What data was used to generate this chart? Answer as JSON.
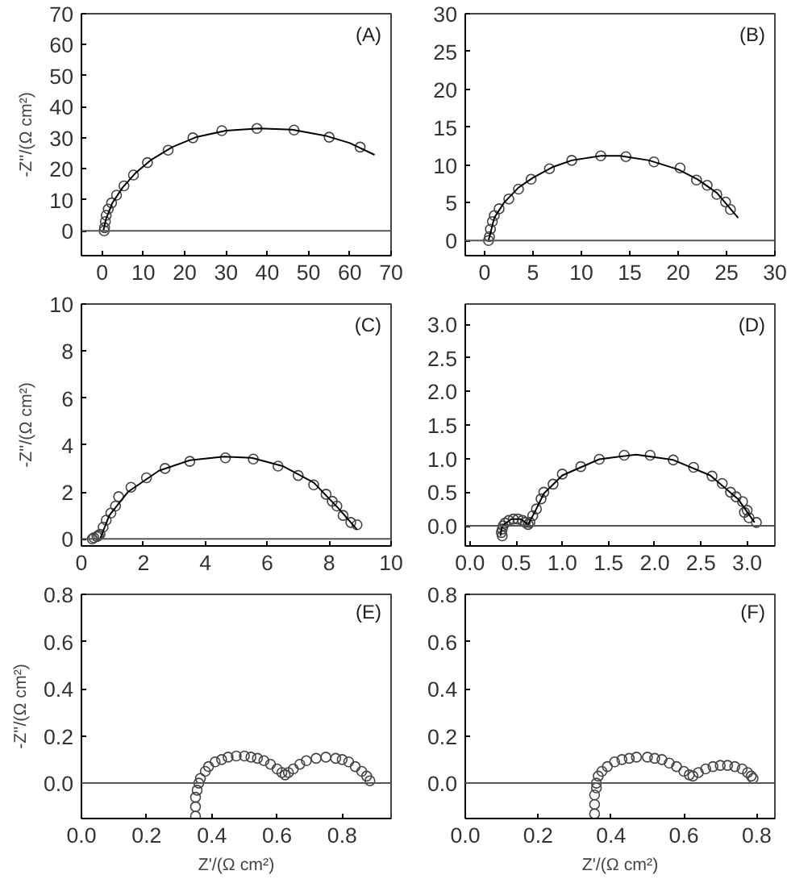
{
  "chart_data": [
    {
      "type": "scatter",
      "annotations": [
        "(A)"
      ],
      "ylabel": "-Z''/(Ω cm²)",
      "xlim": [
        -5,
        70
      ],
      "ylim": [
        -8,
        70
      ],
      "xticks": [
        0,
        10,
        20,
        30,
        40,
        50,
        60,
        70
      ],
      "yticks": [
        0,
        10,
        20,
        30,
        40,
        50,
        60,
        70
      ],
      "ref_lines": [
        {
          "axis": "y",
          "value": 0,
          "color": "#555555"
        }
      ],
      "series": [
        {
          "marker": "circle",
          "color": "#444444",
          "x": [
            0.5,
            0.6,
            0.8,
            1,
            1.5,
            2.3,
            3.5,
            5.3,
            7.6,
            11,
            16,
            22,
            29,
            37.5,
            46.5,
            55,
            62.5
          ],
          "values": [
            0,
            1,
            3,
            5,
            7,
            9,
            11.5,
            14.5,
            18,
            22,
            26,
            30,
            32.3,
            33,
            32.5,
            30.2,
            27
          ]
        },
        {
          "type": "line",
          "color": "#000000",
          "x": [
            0.3,
            1,
            2.5,
            5,
            8,
            12,
            17,
            23,
            30,
            38,
            46,
            54,
            60,
            66
          ],
          "values": [
            0,
            4,
            9,
            14,
            18.5,
            23,
            27,
            30.3,
            32.3,
            33,
            32.6,
            30.7,
            28.3,
            24.5
          ]
        }
      ]
    },
    {
      "type": "scatter",
      "annotations": [
        "(B)"
      ],
      "xlim": [
        -2,
        30
      ],
      "ylim": [
        -2,
        30
      ],
      "xticks": [
        0,
        5,
        10,
        15,
        20,
        25,
        30
      ],
      "yticks": [
        0,
        5,
        10,
        15,
        20,
        25,
        30
      ],
      "ref_lines": [
        {
          "axis": "y",
          "value": 0,
          "color": "#555555"
        }
      ],
      "series": [
        {
          "marker": "circle",
          "color": "#444444",
          "x": [
            0.4,
            0.5,
            0.6,
            0.8,
            1.0,
            1.5,
            2.5,
            3.5,
            4.8,
            6.7,
            9,
            12,
            14.6,
            17.5,
            20.2,
            21.9,
            23,
            24,
            24.9,
            25.4
          ],
          "values": [
            0,
            0.5,
            1.5,
            2.5,
            3.3,
            4.2,
            5.5,
            6.8,
            8.1,
            9.5,
            10.6,
            11.2,
            11.1,
            10.4,
            9.6,
            8,
            7.3,
            6.1,
            5.1,
            4.1
          ]
        },
        {
          "type": "line",
          "color": "#000000",
          "x": [
            0.4,
            1,
            2,
            3.5,
            5,
            7,
            9,
            12,
            14,
            17,
            20,
            22,
            24,
            26.2
          ],
          "values": [
            0,
            3,
            5,
            7,
            8.3,
            9.7,
            10.6,
            11.2,
            11.2,
            10.6,
            9.4,
            8.1,
            6.3,
            3
          ]
        }
      ]
    },
    {
      "type": "scatter",
      "annotations": [
        "(C)"
      ],
      "ylabel": "-Z''/(Ω cm²)",
      "xlim": [
        0,
        10
      ],
      "ylim": [
        -0.3,
        10
      ],
      "xticks": [
        0,
        2,
        4,
        6,
        8,
        10
      ],
      "yticks": [
        0,
        2,
        4,
        6,
        8,
        10
      ],
      "ref_lines": [
        {
          "axis": "y",
          "value": 0,
          "color": "#555555"
        }
      ],
      "series": [
        {
          "marker": "circle",
          "color": "#444444",
          "x": [
            0.35,
            0.4,
            0.5,
            0.55,
            0.6,
            0.7,
            0.8,
            0.95,
            1.1,
            1.2,
            1.6,
            2.1,
            2.7,
            3.5,
            4.65,
            5.55,
            6.35,
            7,
            7.5,
            7.9,
            8.1,
            8.25,
            8.45,
            8.7,
            8.9
          ],
          "values": [
            0,
            0.05,
            0.1,
            0.15,
            0.2,
            0.5,
            0.8,
            1.1,
            1.4,
            1.8,
            2.2,
            2.6,
            3.0,
            3.3,
            3.45,
            3.4,
            3.1,
            2.7,
            2.3,
            1.9,
            1.6,
            1.4,
            1.0,
            0.7,
            0.6
          ]
        },
        {
          "type": "line",
          "color": "#000000",
          "x": [
            0.6,
            0.9,
            1.5,
            2.5,
            3.5,
            4.6,
            5.5,
            6.5,
            7.5,
            8.3,
            8.9
          ],
          "values": [
            0,
            1,
            2,
            2.9,
            3.35,
            3.5,
            3.45,
            3.1,
            2.4,
            1.3,
            0.4
          ]
        }
      ]
    },
    {
      "type": "scatter",
      "annotations": [
        "(D)"
      ],
      "xlim": [
        -0.05,
        3.3
      ],
      "ylim": [
        -0.3,
        3.3
      ],
      "xticks": [
        {
          "value": 0,
          "label": "0.0"
        },
        0.5,
        {
          "value": 1,
          "label": "1.0"
        },
        1.5,
        {
          "value": 2,
          "label": "2.0"
        },
        2.5,
        {
          "value": 3,
          "label": "3.0"
        }
      ],
      "yticks": [
        {
          "value": 0,
          "label": "0.0"
        },
        0.5,
        {
          "value": 1,
          "label": "1.0"
        },
        1.5,
        {
          "value": 2,
          "label": "2.0"
        },
        2.5,
        {
          "value": 3,
          "label": "3.0"
        }
      ],
      "ref_lines": [
        {
          "axis": "y",
          "value": 0,
          "color": "#555555"
        }
      ],
      "series": [
        {
          "marker": "circle",
          "color": "#444444",
          "x": [
            0.35,
            0.34,
            0.35,
            0.36,
            0.38,
            0.42,
            0.47,
            0.52,
            0.57,
            0.6,
            0.63,
            0.65,
            0.68,
            0.72,
            0.77,
            0.8,
            0.9,
            1.0,
            1.2,
            1.4,
            1.67,
            1.95,
            2.2,
            2.42,
            2.62,
            2.73,
            2.82,
            2.88,
            2.95,
            2.97,
            3.0,
            3.02,
            3.1
          ],
          "values": [
            -0.15,
            -0.1,
            -0.05,
            0,
            0.04,
            0.08,
            0.1,
            0.1,
            0.08,
            0.05,
            0.02,
            0.05,
            0.15,
            0.25,
            0.4,
            0.5,
            0.62,
            0.77,
            0.88,
            0.99,
            1.05,
            1.05,
            0.98,
            0.87,
            0.74,
            0.63,
            0.5,
            0.43,
            0.36,
            0.2,
            0.23,
            0.12,
            0.05
          ]
        },
        {
          "type": "line",
          "color": "#000000",
          "x": [
            0.33,
            0.35,
            0.45,
            0.55,
            0.63,
            0.7,
            0.8,
            1.0,
            1.4,
            1.8,
            2.2,
            2.6,
            2.9,
            3.08
          ],
          "values": [
            -0.15,
            0,
            0.1,
            0.1,
            0.02,
            0.2,
            0.48,
            0.75,
            0.99,
            1.06,
            0.98,
            0.75,
            0.4,
            0.05
          ]
        }
      ]
    },
    {
      "type": "scatter",
      "annotations": [
        "(E)"
      ],
      "xlabel": "Z'/(Ω cm²)",
      "ylabel": "-Z''/(Ω cm²)",
      "xlim": [
        0,
        0.95
      ],
      "ylim": [
        -0.15,
        0.8
      ],
      "xticks": [
        {
          "value": 0,
          "label": "0.0"
        },
        0.2,
        0.4,
        0.6,
        0.8
      ],
      "yticks": [
        {
          "value": 0,
          "label": "0.0"
        },
        0.2,
        0.4,
        0.6,
        0.8
      ],
      "ref_lines": [
        {
          "axis": "y",
          "value": 0,
          "color": "#555555"
        }
      ],
      "series": [
        {
          "marker": "circle",
          "color": "#444444",
          "x": [
            0.35,
            0.35,
            0.35,
            0.355,
            0.36,
            0.365,
            0.38,
            0.39,
            0.41,
            0.43,
            0.45,
            0.475,
            0.5,
            0.52,
            0.54,
            0.56,
            0.58,
            0.6,
            0.615,
            0.625,
            0.635,
            0.65,
            0.67,
            0.69,
            0.72,
            0.75,
            0.78,
            0.8,
            0.82,
            0.84,
            0.86,
            0.875,
            0.885
          ],
          "values": [
            -0.14,
            -0.1,
            -0.06,
            -0.03,
            0,
            0.02,
            0.05,
            0.07,
            0.09,
            0.1,
            0.11,
            0.115,
            0.115,
            0.11,
            0.105,
            0.095,
            0.08,
            0.06,
            0.045,
            0.035,
            0.045,
            0.06,
            0.08,
            0.095,
            0.105,
            0.11,
            0.105,
            0.1,
            0.09,
            0.07,
            0.05,
            0.03,
            0.01
          ]
        }
      ]
    },
    {
      "type": "scatter",
      "annotations": [
        "(F)"
      ],
      "xlabel": "Z'/(Ω cm²)",
      "xlim": [
        0,
        0.85
      ],
      "ylim": [
        -0.15,
        0.8
      ],
      "xticks": [
        {
          "value": 0,
          "label": "0.0"
        },
        0.2,
        0.4,
        0.6,
        0.8
      ],
      "yticks": [
        {
          "value": 0,
          "label": "0.0"
        },
        0.2,
        0.4,
        0.6,
        0.8
      ],
      "ref_lines": [
        {
          "axis": "y",
          "value": 0,
          "color": "#555555"
        }
      ],
      "series": [
        {
          "marker": "circle",
          "color": "#444444",
          "x": [
            0.355,
            0.355,
            0.355,
            0.36,
            0.36,
            0.365,
            0.375,
            0.39,
            0.41,
            0.43,
            0.45,
            0.47,
            0.5,
            0.52,
            0.54,
            0.56,
            0.58,
            0.6,
            0.615,
            0.625,
            0.64,
            0.66,
            0.68,
            0.7,
            0.72,
            0.74,
            0.76,
            0.775,
            0.785,
            0.79
          ],
          "values": [
            -0.13,
            -0.09,
            -0.05,
            -0.02,
            0,
            0.03,
            0.05,
            0.07,
            0.09,
            0.1,
            0.105,
            0.11,
            0.11,
            0.105,
            0.1,
            0.085,
            0.07,
            0.05,
            0.035,
            0.03,
            0.045,
            0.06,
            0.07,
            0.075,
            0.075,
            0.07,
            0.06,
            0.045,
            0.03,
            0.02
          ]
        }
      ]
    }
  ]
}
